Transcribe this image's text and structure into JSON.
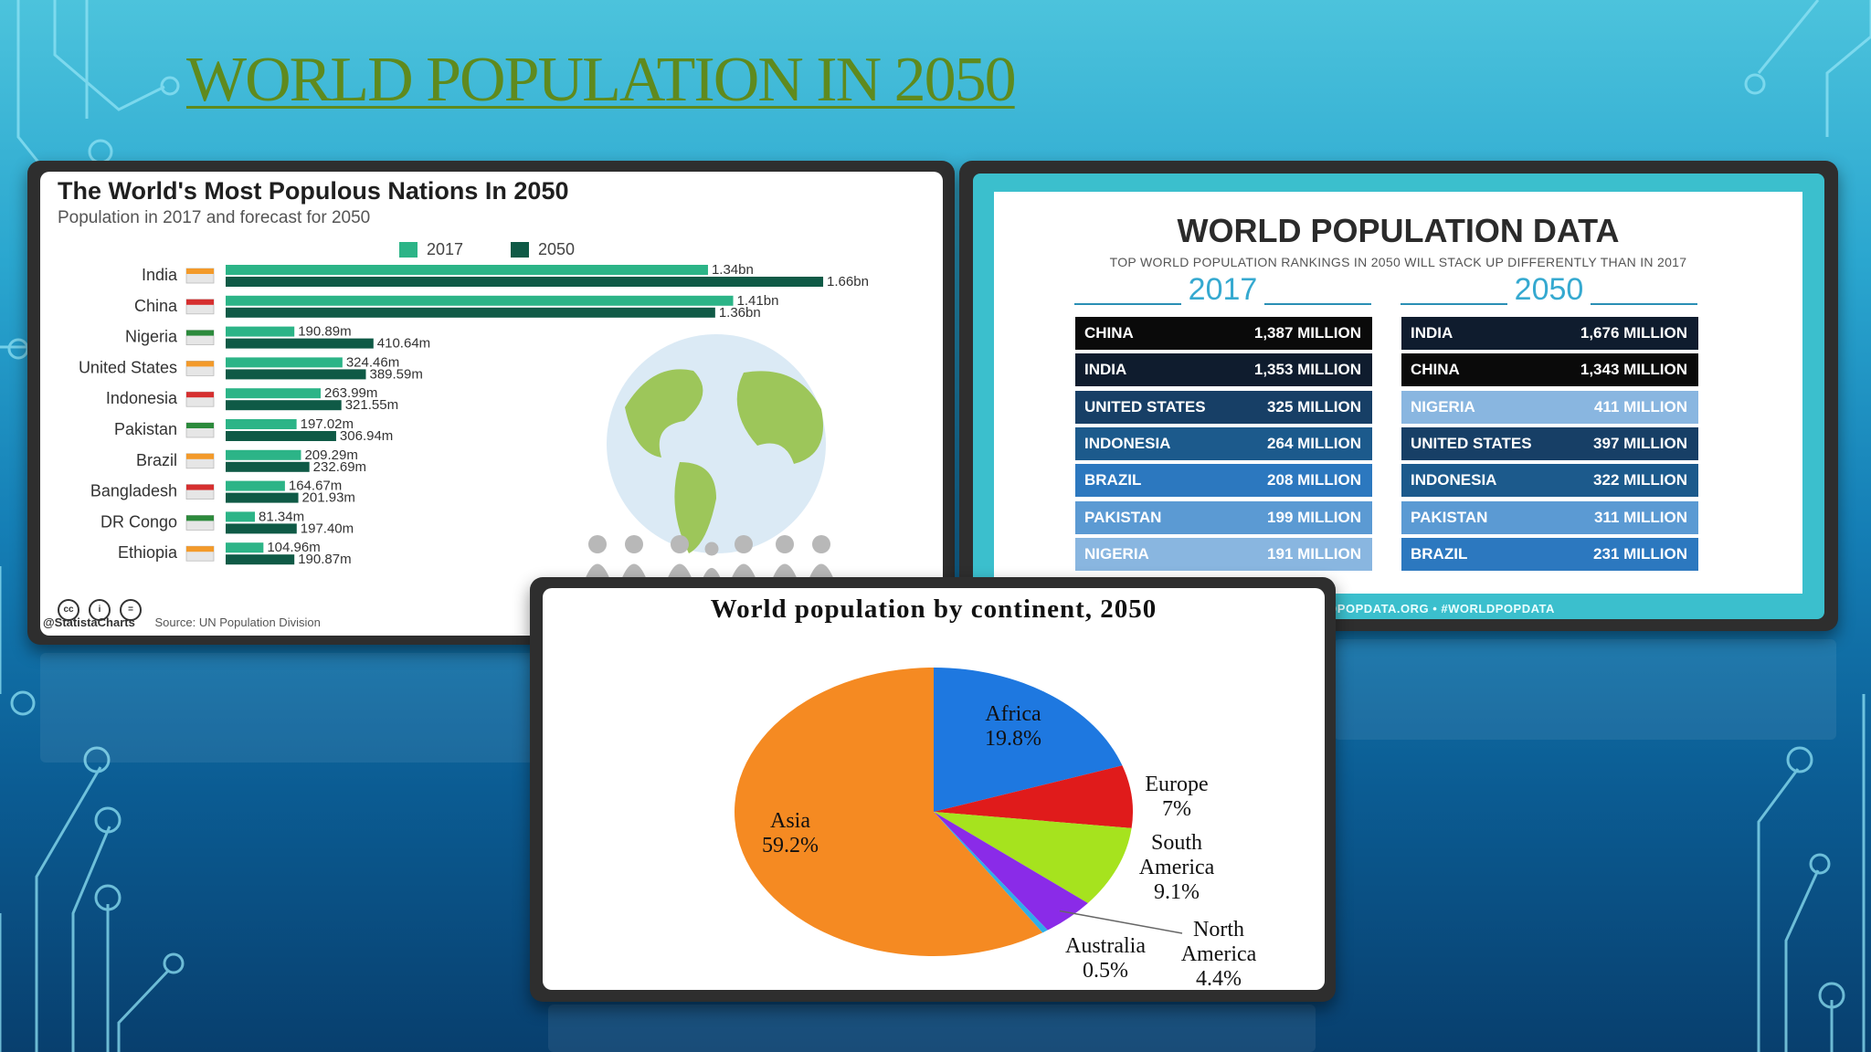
{
  "slide": {
    "title": "WORLD POPULATION IN 2050"
  },
  "colors": {
    "bar_2017": "#2cb487",
    "bar_2050": "#0f5a46",
    "title_green": "#5f8a1e"
  },
  "bar_panel": {
    "title": "The World's Most Populous Nations In 2050",
    "subtitle": "Population in 2017 and forecast for 2050",
    "source_label": "Source: UN Population Division",
    "credit": "@StatistaCharts",
    "cc_icons": [
      "cc",
      "i",
      "="
    ]
  },
  "table_panel": {
    "title": "WORLD POPULATION DATA",
    "subtitle": "TOP WORLD POPULATION RANKINGS IN 2050 WILL STACK UP DIFFERENTLY THAN IN 2017",
    "year_2017": "2017",
    "year_2050": "2050",
    "footer": "REAU • WORLDPOPDATA.ORG • #WORLDPOPDATA",
    "rows_2017": [
      {
        "country": "CHINA",
        "value": "1,387 MILLION",
        "color": "#0a0a0a"
      },
      {
        "country": "INDIA",
        "value": "1,353 MILLION",
        "color": "#0f1c2e"
      },
      {
        "country": "UNITED STATES",
        "value": "325 MILLION",
        "color": "#173f66"
      },
      {
        "country": "INDONESIA",
        "value": "264 MILLION",
        "color": "#1c5a8c"
      },
      {
        "country": "BRAZIL",
        "value": "208 MILLION",
        "color": "#2c78bf"
      },
      {
        "country": "PAKISTAN",
        "value": "199 MILLION",
        "color": "#5b9ad3"
      },
      {
        "country": "NIGERIA",
        "value": "191 MILLION",
        "color": "#89b6e0"
      }
    ],
    "rows_2050": [
      {
        "country": "INDIA",
        "value": "1,676 MILLION",
        "color": "#0f1c2e"
      },
      {
        "country": "CHINA",
        "value": "1,343 MILLION",
        "color": "#0a0a0a"
      },
      {
        "country": "NIGERIA",
        "value": "411 MILLION",
        "color": "#89b6e0"
      },
      {
        "country": "UNITED STATES",
        "value": "397 MILLION",
        "color": "#173f66"
      },
      {
        "country": "INDONESIA",
        "value": "322 MILLION",
        "color": "#1c5a8c"
      },
      {
        "country": "PAKISTAN",
        "value": "311 MILLION",
        "color": "#5b9ad3"
      },
      {
        "country": "BRAZIL",
        "value": "231 MILLION",
        "color": "#2c78bf"
      }
    ]
  },
  "chart_data": [
    {
      "type": "bar",
      "orientation": "horizontal",
      "title": "The World's Most Populous Nations In 2050",
      "subtitle": "Population in 2017 and forecast for 2050",
      "legend_position": "top",
      "categories": [
        "India",
        "China",
        "Nigeria",
        "United States",
        "Indonesia",
        "Pakistan",
        "Brazil",
        "Bangladesh",
        "DR Congo",
        "Ethiopia"
      ],
      "series": [
        {
          "name": "2017",
          "color": "#2cb487",
          "values": [
            1340,
            1410,
            190.89,
            324.46,
            263.99,
            197.02,
            209.29,
            164.67,
            81.34,
            104.96
          ],
          "labels": [
            "1.34bn",
            "1.41bn",
            "190.89m",
            "324.46m",
            "263.99m",
            "197.02m",
            "209.29m",
            "164.67m",
            "81.34m",
            "104.96m"
          ]
        },
        {
          "name": "2050",
          "color": "#0f5a46",
          "values": [
            1660,
            1360,
            410.64,
            389.59,
            321.55,
            306.94,
            232.69,
            201.93,
            197.4,
            190.87
          ],
          "labels": [
            "1.66bn",
            "1.36bn",
            "410.64m",
            "389.59m",
            "321.55m",
            "306.94m",
            "232.69m",
            "201.93m",
            "197.40m",
            "190.87m"
          ]
        }
      ],
      "value_unit": "millions",
      "grid": false
    },
    {
      "type": "pie",
      "title": "World population by continent, 2050",
      "slices": [
        {
          "label": "Africa",
          "value": 19.8,
          "display": "19.8%",
          "color": "#1e78e0"
        },
        {
          "label": "Europe",
          "value": 7,
          "display": "7%",
          "color": "#e01b1b"
        },
        {
          "label": "South America",
          "value": 9.1,
          "display": "9.1%",
          "color": "#a6e31e"
        },
        {
          "label": "North America",
          "value": 4.4,
          "display": "4.4%",
          "color": "#8a2be8"
        },
        {
          "label": "Australia",
          "value": 0.5,
          "display": "0.5%",
          "color": "#30aee8"
        },
        {
          "label": "Asia",
          "value": 59.2,
          "display": "59.2%",
          "color": "#f58a22"
        }
      ]
    }
  ]
}
